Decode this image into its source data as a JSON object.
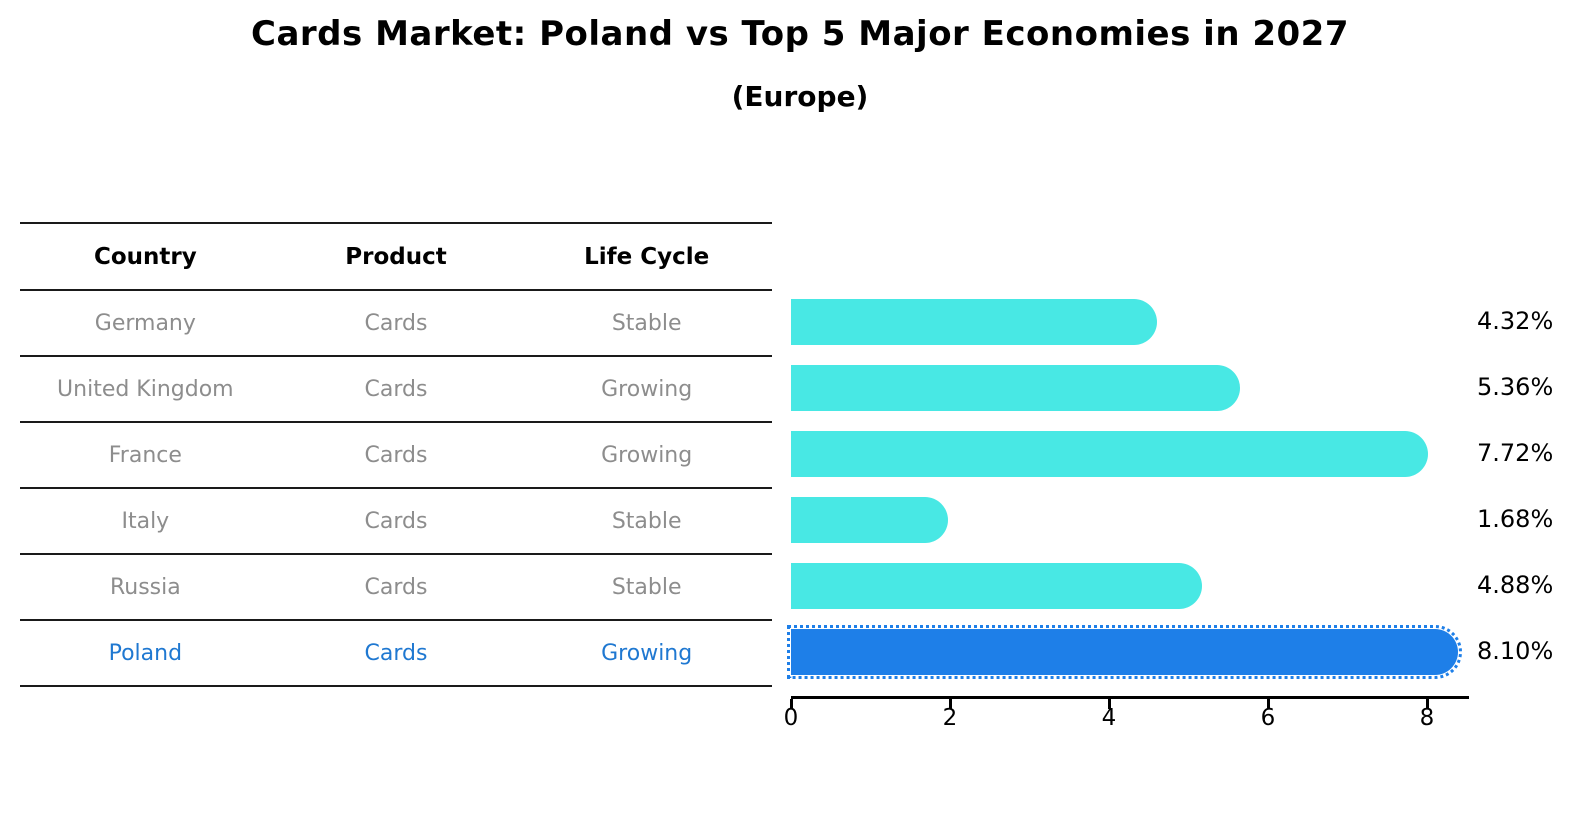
{
  "title": "Cards Market: Poland vs Top 5 Major Economies in 2027",
  "subtitle": "(Europe)",
  "table": {
    "headers": [
      "Country",
      "Product",
      "Life Cycle"
    ],
    "rows": [
      {
        "country": "Germany",
        "product": "Cards",
        "life_cycle": "Stable",
        "highlighted": false
      },
      {
        "country": "United Kingdom",
        "product": "Cards",
        "life_cycle": "Growing",
        "highlighted": false
      },
      {
        "country": "France",
        "product": "Cards",
        "life_cycle": "Growing",
        "highlighted": false
      },
      {
        "country": "Italy",
        "product": "Cards",
        "life_cycle": "Stable",
        "highlighted": false
      },
      {
        "country": "Russia",
        "product": "Cards",
        "life_cycle": "Stable",
        "highlighted": false
      },
      {
        "country": "Poland",
        "product": "Cards",
        "life_cycle": "Growing",
        "highlighted": true
      }
    ]
  },
  "chart_data": {
    "type": "bar",
    "orientation": "horizontal",
    "title": "Cards Market: Poland vs Top 5 Major Economies in 2027",
    "subtitle": "(Europe)",
    "categories": [
      "Germany",
      "United Kingdom",
      "France",
      "Italy",
      "Russia",
      "Poland"
    ],
    "values": [
      4.32,
      5.36,
      7.72,
      1.68,
      4.88,
      8.1
    ],
    "value_labels": [
      "4.32%",
      "5.36%",
      "7.72%",
      "1.68%",
      "4.88%",
      "8.10%"
    ],
    "xticks": [
      "0",
      "2",
      "4",
      "6",
      "8"
    ],
    "xtick_values": [
      0,
      2,
      4,
      6,
      8
    ],
    "xlim": [
      0,
      8.5
    ],
    "grid": false,
    "legend": "none",
    "highlight_category": "Poland",
    "bar_color": "#48e8e4",
    "highlight_bar_color": "#1e7fe8",
    "highlight_text_color": "#1f78d1",
    "label_color": "#000000",
    "table_text_color": "#8d8d8d"
  }
}
